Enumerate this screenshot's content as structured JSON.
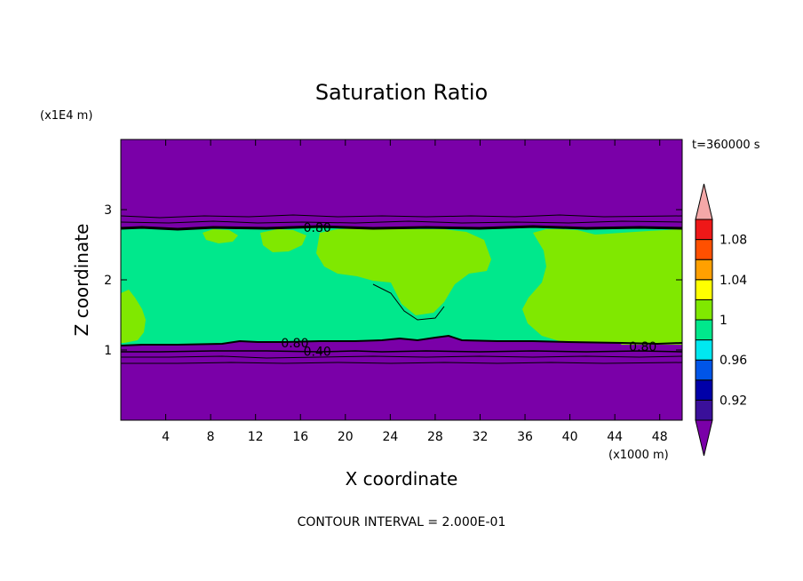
{
  "chart_data": {
    "type": "heatmap",
    "title": "Saturation Ratio",
    "xlabel": "X coordinate",
    "ylabel": "Z coordinate",
    "x_unit": "(x1000 m)",
    "y_unit": "(x1E4 m)",
    "time_label": "t=360000 s",
    "footer": "CONTOUR INTERVAL = 2.000E-01",
    "xlim": [
      0,
      50
    ],
    "ylim": [
      0,
      4
    ],
    "x_ticks": [
      4,
      8,
      12,
      16,
      20,
      24,
      28,
      32,
      36,
      40,
      44,
      48
    ],
    "y_ticks": [
      1,
      2,
      3
    ],
    "contour_labels": [
      {
        "text": "0.80",
        "x": 17.5,
        "z": 2.75
      },
      {
        "text": "0.80",
        "x": 15.5,
        "z": 1.1
      },
      {
        "text": "0.40",
        "x": 17.5,
        "z": 0.98
      },
      {
        "text": "0.80",
        "x": 46.5,
        "z": 1.05
      }
    ],
    "layers": {
      "dry_upper": {
        "z_from": 2.75,
        "z_to": 4.0,
        "value": "< 0.90"
      },
      "moist_layer": {
        "z_from": 1.05,
        "z_to": 2.75,
        "value": "0.98 - 1.02"
      },
      "dry_lower": {
        "z_from": 0.0,
        "z_to": 1.05,
        "value": "< 0.90"
      }
    },
    "colorbar": {
      "tick_labels": [
        "0.92",
        "0.96",
        "1",
        "1.04",
        "1.08"
      ],
      "levels": [
        0.9,
        0.92,
        0.94,
        0.96,
        0.98,
        1.0,
        1.02,
        1.04,
        1.06,
        1.08,
        1.1
      ],
      "colors": [
        "#3a109a",
        "#0000a8",
        "#0055e8",
        "#00e8f0",
        "#00e88c",
        "#80e800",
        "#ffff00",
        "#ffa000",
        "#ff5000",
        "#ee1818"
      ],
      "under_color": "#7a00a8",
      "over_color": "#f4a8a8"
    },
    "colors": {
      "background": "#7a00a8",
      "moist": "#00e88c",
      "supersat": "#80e800"
    }
  }
}
